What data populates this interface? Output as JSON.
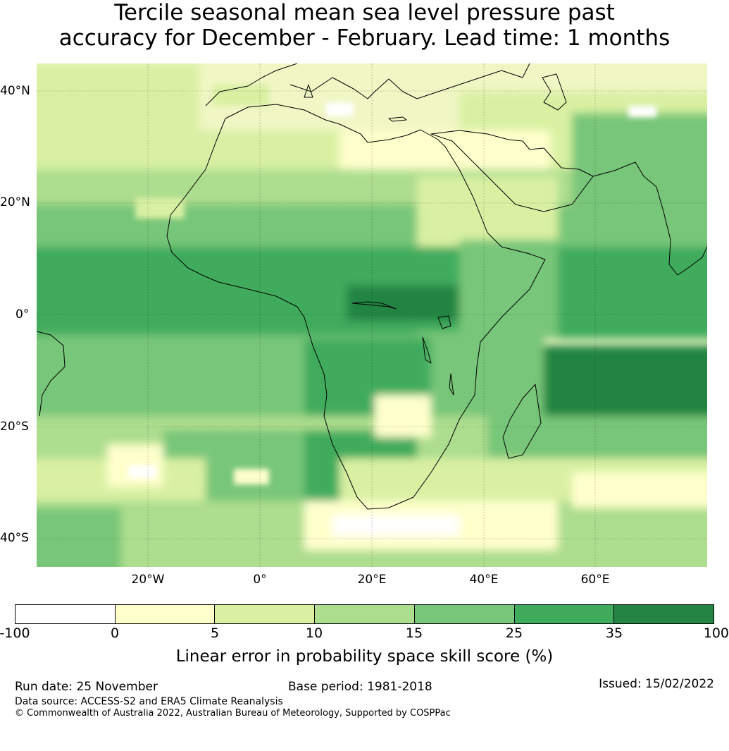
{
  "title": {
    "line1": "Tercile seasonal mean sea level pressure past",
    "line2": "accuracy for December - February. Lead time: 1 months"
  },
  "map": {
    "lat_labels": [
      "40°N",
      "20°N",
      "0°",
      "20°S",
      "40°S"
    ],
    "lon_labels": [
      "20°W",
      "0°",
      "20°E",
      "40°E",
      "60°E"
    ],
    "lon_range": [
      -40,
      80
    ],
    "lat_range": [
      -45,
      45
    ],
    "grid_lons": [
      -20,
      0,
      20,
      40,
      60
    ],
    "grid_lats": [
      40,
      20,
      0,
      -20,
      -40
    ]
  },
  "colorbar": {
    "ticks": [
      "-100",
      "0",
      "5",
      "10",
      "15",
      "25",
      "35",
      "100"
    ],
    "colors": [
      "#ffffff",
      "#ffffcc",
      "#d9f0a3",
      "#addd8e",
      "#78c679",
      "#41ab5d",
      "#238443"
    ],
    "label": "Linear error in probability space skill score (%)"
  },
  "footer": {
    "run_date": "Run date: 25 November",
    "base_period": "Base period: 1981-2018",
    "issued": "Issued: 15/02/2022",
    "data_source": "Data source: ACCESS-S2 and ERA5 Climate Reanalysis",
    "copyright": "© Commonwealth of Australia 2022, Australian Bureau of Meteorology, Supported by COSPPac"
  }
}
